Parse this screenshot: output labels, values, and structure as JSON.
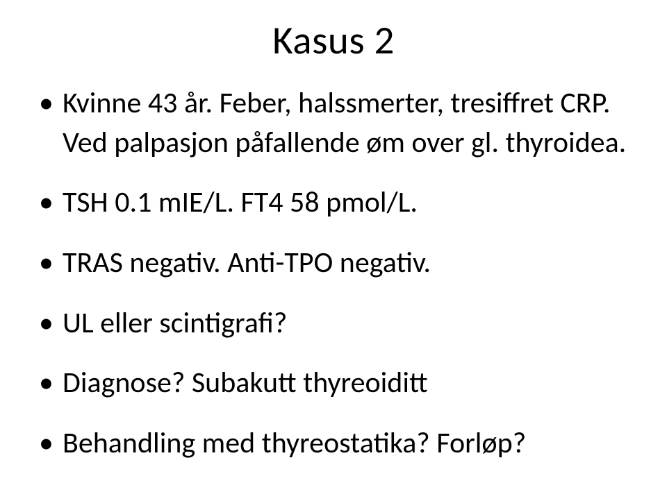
{
  "title": "Kasus 2",
  "bullets": [
    "Kvinne 43 år. Feber, halssmerter, tresiffret CRP. Ved palpasjon påfallende øm over gl. thyroidea.",
    "TSH 0.1 mIE/L. FT4 58 pmol/L.",
    "TRAS negativ. Anti-TPO negativ.",
    "UL eller scintigrafi?",
    "Diagnose? Subakutt thyreoiditt",
    "Behandling med thyreostatika? Forløp?"
  ],
  "style": {
    "background_color": "#ffffff",
    "text_color": "#000000",
    "title_fontsize": 57,
    "body_fontsize": 42,
    "font_family": "Calibri"
  }
}
